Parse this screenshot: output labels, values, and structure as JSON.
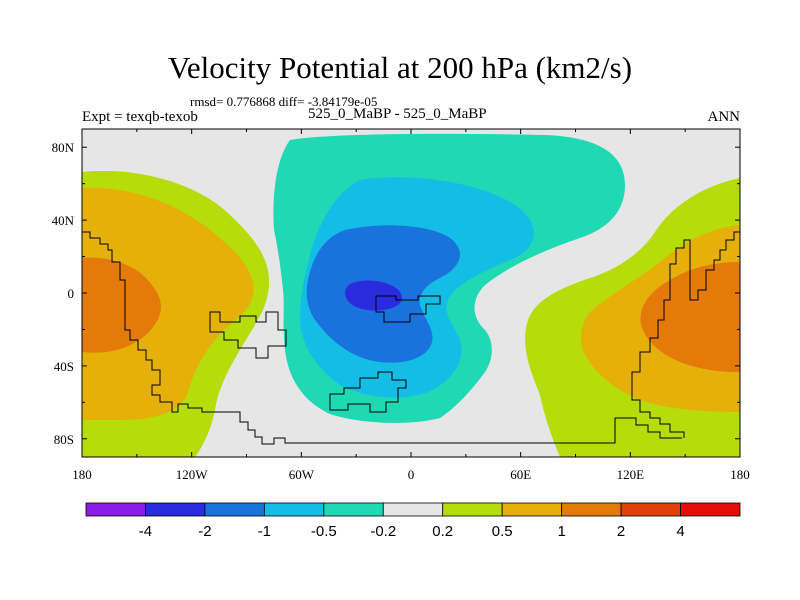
{
  "title": "Velocity Potential at 200 hPa (km2/s)",
  "stats_line": "rmsd= 0.776868 diff= -3.84179e-05",
  "left_label": "Expt = texqb-texob",
  "center_label": "525_0_MaBP - 525_0_MaBP",
  "right_label": "ANN",
  "chart_data": {
    "type": "heatmap",
    "title": "Velocity Potential at 200 hPa (km2/s)",
    "x_ticks": [
      "180",
      "120W",
      "60W",
      "0",
      "60E",
      "120E",
      "180"
    ],
    "y_ticks": [
      "80N",
      "40N",
      "0",
      "40S",
      "80S"
    ],
    "xlim": [
      -180,
      180
    ],
    "ylim": [
      -90,
      90
    ],
    "colorbar": {
      "labels": [
        "-4",
        "-2",
        "-1",
        "-0.5",
        "-0.2",
        "0.2",
        "0.5",
        "1",
        "2",
        "4"
      ],
      "colors": [
        "#8a1ee8",
        "#2a2adf",
        "#1a72dc",
        "#14bde6",
        "#1ed9b4",
        "#e6e6e6",
        "#b6dc0a",
        "#e6b00a",
        "#e47a0a",
        "#e0400a",
        "#e60c0c"
      ]
    },
    "regions": [
      {
        "level": "0.2 to 0.5",
        "description": "western and eastern subtropics"
      },
      {
        "level": "0.5 to 1",
        "description": "tropical flanks near 180"
      },
      {
        "level": "1 to 2",
        "description": "tropical core near 180"
      },
      {
        "level": "-0.5 to -0.2",
        "description": "broad region centered near 30W"
      },
      {
        "level": "-1 to -0.5",
        "description": "tropical region near 30W"
      },
      {
        "level": "-2 to -1",
        "description": "core near 40W, 0"
      },
      {
        "level": "-4 to -2",
        "description": "minimum near 35W, 0"
      }
    ]
  }
}
